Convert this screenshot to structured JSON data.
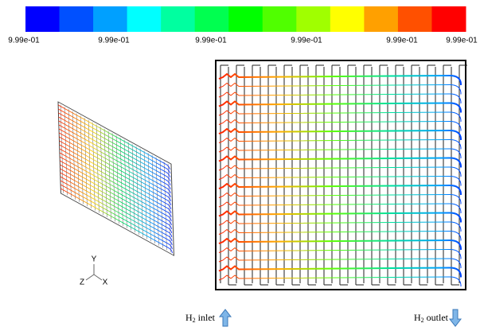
{
  "colorbar": {
    "colors": [
      "#0000ff",
      "#0050ff",
      "#00a0ff",
      "#00ffff",
      "#00ffa0",
      "#00ff50",
      "#00ff00",
      "#50ff00",
      "#a0ff00",
      "#ffff00",
      "#ffa000",
      "#ff5000",
      "#ff0000"
    ],
    "labels": [
      "9.99e-01",
      "9.99e-01",
      "9.99e-01",
      "9.99e-01",
      "9.99e-01",
      "9.99e-01"
    ]
  },
  "triad": {
    "y": "Y",
    "z": "Z",
    "x": "X"
  },
  "inlet": {
    "species": "H",
    "subscript": "2",
    "text": "inlet"
  },
  "outlet": {
    "species": "H",
    "subscript": "2",
    "text": "outlet"
  }
}
